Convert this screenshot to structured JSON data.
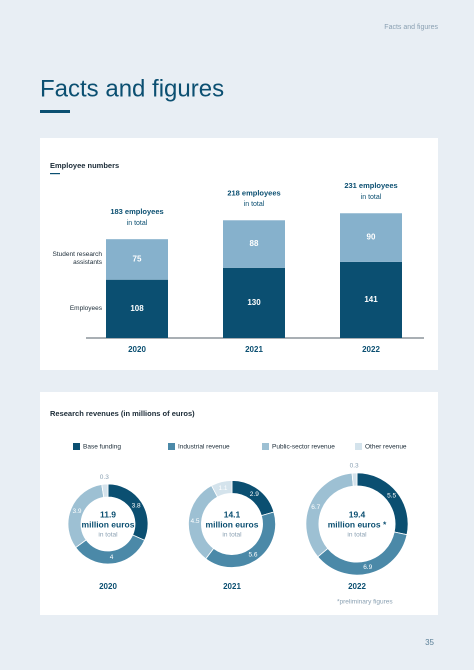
{
  "header": "Facts and figures",
  "title": "Facts and figures",
  "page_number": "35",
  "chart_data": [
    {
      "type": "stacked-bar",
      "title": "Employee numbers",
      "categories": [
        "2020",
        "2021",
        "2022"
      ],
      "series": [
        {
          "name": "Employees",
          "color": "#0b4f71",
          "values": [
            108,
            130,
            141
          ]
        },
        {
          "name": "Student research assistants",
          "color": "#86b1cc",
          "values": [
            75,
            88,
            90
          ]
        }
      ],
      "total_labels": [
        "183 employees",
        "218 employees",
        "231 employees"
      ],
      "total_note": "in total"
    },
    {
      "type": "donut",
      "title": "Research revenues (in millions of euros)",
      "categories": [
        "2020",
        "2021",
        "2022"
      ],
      "series": [
        {
          "name": "Base funding",
          "color": "#0b4f71",
          "values": [
            3.8,
            2.9,
            5.5
          ]
        },
        {
          "name": "Industrial revenue",
          "color": "#4b89a8",
          "values": [
            4.0,
            5.6,
            6.9
          ]
        },
        {
          "name": "Public-sector revenue",
          "color": "#9dc0d3",
          "values": [
            3.9,
            4.5,
            6.7
          ]
        },
        {
          "name": "Other revenue",
          "color": "#d4e3ec",
          "values": [
            0.3,
            1.1,
            0.3
          ]
        }
      ],
      "totals": [
        11.9,
        14.1,
        19.4
      ],
      "total_units": [
        "million euros",
        "million euros",
        "million euros *"
      ],
      "total_note": "in total",
      "note": "*preliminary figures"
    }
  ]
}
